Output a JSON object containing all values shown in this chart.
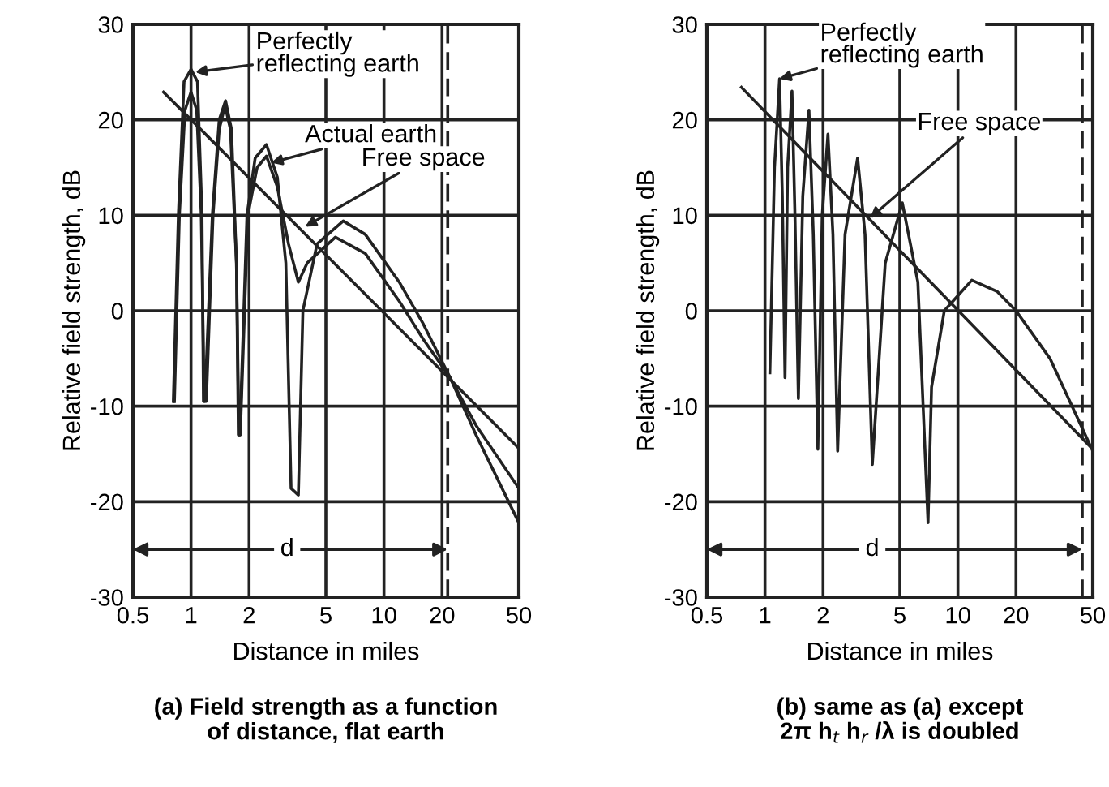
{
  "chart_data": [
    {
      "type": "line",
      "title": "(a) Field strength as a function\nof distance, flat earth",
      "xlabel": "Distance in miles",
      "ylabel": "Relative field strength, dB",
      "log": "x",
      "xlim": [
        0.5,
        50
      ],
      "xticks": [
        0.5,
        1,
        2,
        5,
        10,
        20,
        50
      ],
      "ylim": [
        -30,
        30
      ],
      "yticks": [
        -30,
        -20,
        -10,
        0,
        10,
        20,
        30
      ],
      "grid": true,
      "series": [
        {
          "color": "#222222",
          "x": [
            0.72,
            50
          ],
          "values": [
            22.9,
            -14.4
          ]
        },
        {
          "color": "#222222",
          "x": [
            0.81,
            0.86,
            0.92,
            1.0,
            1.08,
            1.14,
            1.16,
            1.18,
            1.29,
            1.4,
            1.51,
            1.62,
            1.72,
            1.76,
            1.79,
            1.95,
            2.15,
            2.46,
            2.8,
            3.1,
            3.3,
            3.6,
            3.8,
            4.5,
            6.15,
            8,
            12,
            16,
            22,
            30,
            50
          ],
          "values": [
            -9.5,
            10,
            24,
            25.3,
            24,
            10,
            -9.5,
            -9.5,
            10,
            20,
            22,
            19,
            5,
            -13,
            -13,
            10,
            16,
            17.4,
            14,
            5,
            -18.6,
            -19.3,
            0,
            7,
            9.4,
            8,
            3,
            -1.4,
            -7,
            -12,
            -18.6
          ]
        },
        {
          "color": "#222222",
          "x": [
            0.82,
            0.87,
            0.93,
            1.0,
            1.07,
            1.13,
            1.17,
            1.2,
            1.3,
            1.4,
            1.5,
            1.6,
            1.72,
            1.77,
            1.8,
            1.97,
            2.2,
            2.46,
            2.8,
            3.2,
            3.6,
            4.0,
            5.6,
            8,
            12,
            16,
            22,
            30,
            50
          ],
          "values": [
            -9.5,
            10,
            21,
            22.9,
            21,
            10,
            -9.5,
            -9.5,
            10,
            19,
            21.5,
            19,
            5,
            -13,
            -13,
            10,
            15,
            16.2,
            13,
            7,
            3,
            5,
            7.7,
            6,
            1,
            -3,
            -7,
            -13,
            -22.2
          ]
        }
      ],
      "ref_lines": [
        {
          "axis": "x",
          "value": 21.4,
          "line_style": "dashed"
        }
      ],
      "annotations": [
        {
          "text": "Perfectly\nreflecting earth",
          "x": 1.05,
          "y": 25
        },
        {
          "text": "Actual earth",
          "x": 2.6,
          "y": 15.5
        },
        {
          "text": "Free space",
          "x": 3.9,
          "y": 8.8
        },
        {
          "text": "d",
          "x": 3.15,
          "y": -25
        }
      ]
    },
    {
      "type": "line",
      "title": "(b) same as (a) except\n2π h$_{t}$ h$_{r}$ /λ is doubled",
      "xlabel": "Distance in miles",
      "ylabel": "Relative field strength, dB",
      "log": "x",
      "xlim": [
        0.5,
        50
      ],
      "xticks": [
        0.5,
        1,
        2,
        5,
        10,
        20,
        50
      ],
      "ylim": [
        -30,
        30
      ],
      "yticks": [
        -30,
        -20,
        -10,
        0,
        10,
        20,
        30
      ],
      "grid": true,
      "series": [
        {
          "color": "#222222",
          "x": [
            0.755,
            50
          ],
          "values": [
            23.4,
            -14.5
          ]
        },
        {
          "color": "#222222",
          "x": [
            1.06,
            1.12,
            1.19,
            1.23,
            1.27,
            1.31,
            1.38,
            1.43,
            1.49,
            1.57,
            1.69,
            1.78,
            1.88,
            1.98,
            2.12,
            2.25,
            2.38,
            2.6,
            3.02,
            3.3,
            3.6,
            4.2,
            5.15,
            6.2,
            7.0,
            7.3,
            8.5,
            11.8,
            16,
            20,
            30,
            50
          ],
          "values": [
            -6.5,
            15,
            24.3,
            12,
            -7,
            15,
            23,
            10,
            -9.2,
            12,
            21,
            8,
            -14.5,
            10,
            18.5,
            8,
            -14.7,
            8,
            16,
            8,
            -16.1,
            5,
            11.3,
            3,
            -22.2,
            -8,
            0,
            3.2,
            2,
            0,
            -5,
            -14.7
          ]
        }
      ],
      "ref_lines": [
        {
          "axis": "x",
          "value": 44.1,
          "line_style": "dashed"
        }
      ],
      "annotations": [
        {
          "text": "Perfectly\nreflecting earth",
          "x": 1.19,
          "y": 24.3
        },
        {
          "text": "Free space",
          "x": 3.5,
          "y": 9.7
        },
        {
          "text": "d",
          "x": 3.6,
          "y": -25
        }
      ]
    }
  ]
}
